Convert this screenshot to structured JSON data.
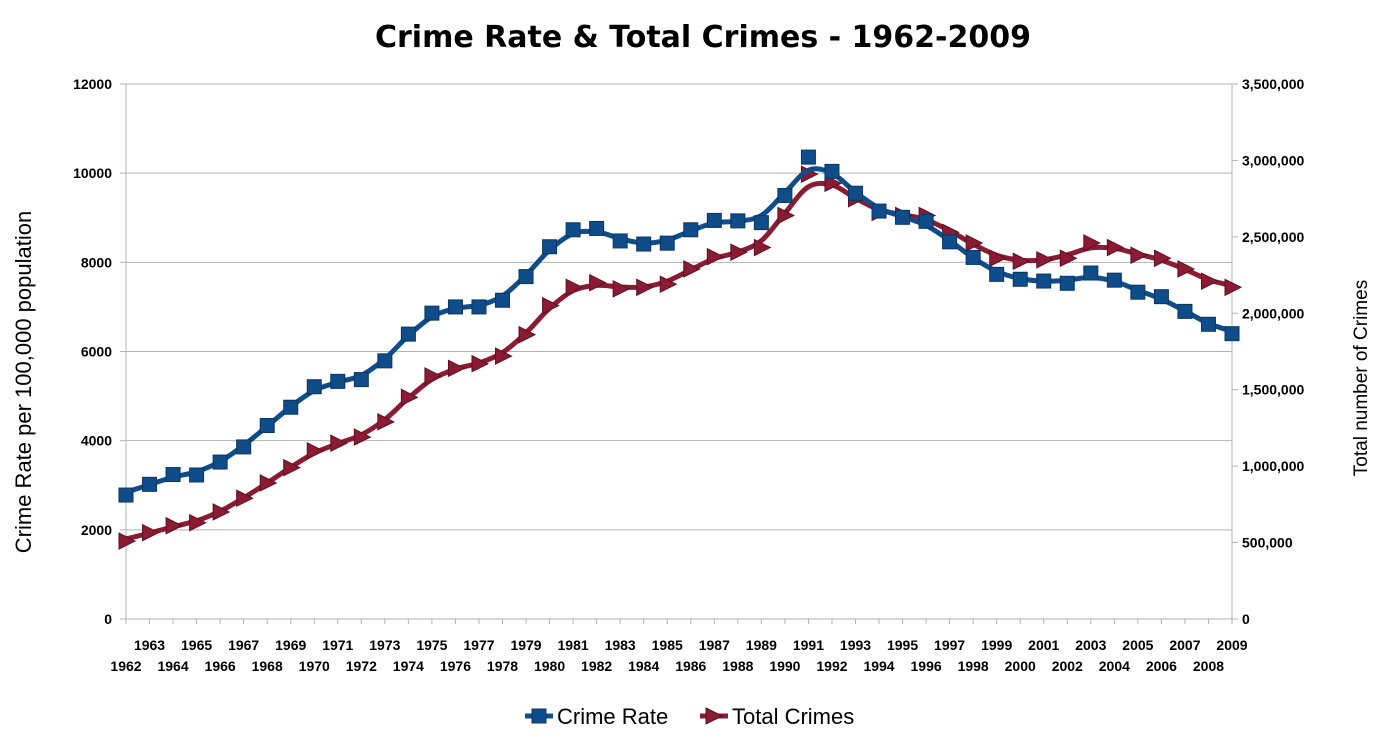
{
  "chart_data": {
    "type": "line",
    "title": "Crime Rate & Total Crimes - 1962-2009",
    "ylabel": "Crime Rate per 100,000 population",
    "ylabel_right": "Total number of Crimes",
    "xlabel": "",
    "ylim": [
      0,
      12000
    ],
    "ylim_right": [
      0,
      3500000
    ],
    "yticks": [
      "0",
      "2000",
      "4000",
      "6000",
      "8000",
      "10000",
      "12000"
    ],
    "yticks_right": [
      "0",
      "500,000",
      "1,000,000",
      "1,500,000",
      "2,000,000",
      "2,500,000",
      "3,000,000",
      "3,500,000"
    ],
    "grid": "horizontal",
    "legend": "bottom",
    "x": [
      "1962",
      "1963",
      "1964",
      "1965",
      "1966",
      "1967",
      "1968",
      "1969",
      "1970",
      "1971",
      "1972",
      "1973",
      "1974",
      "1975",
      "1976",
      "1977",
      "1978",
      "1979",
      "1980",
      "1981",
      "1982",
      "1983",
      "1984",
      "1985",
      "1986",
      "1987",
      "1988",
      "1989",
      "1990",
      "1991",
      "1992",
      "1993",
      "1994",
      "1995",
      "1996",
      "1997",
      "1998",
      "1999",
      "2000",
      "2001",
      "2002",
      "2003",
      "2004",
      "2005",
      "2006",
      "2007",
      "2008",
      "2009"
    ],
    "series": [
      {
        "name": "Crime Rate",
        "axis": "left",
        "color": "#0f4c8a",
        "marker": "square",
        "values": [
          2780,
          3020,
          3240,
          3230,
          3520,
          3860,
          4340,
          4750,
          5210,
          5330,
          5370,
          5790,
          6390,
          6860,
          7000,
          7000,
          7150,
          7680,
          8350,
          8730,
          8760,
          8480,
          8410,
          8430,
          8730,
          8940,
          8930,
          8890,
          9500,
          10360,
          10040,
          9550,
          9150,
          9010,
          8920,
          8460,
          8110,
          7730,
          7620,
          7580,
          7530,
          7760,
          7600,
          7330,
          7230,
          6900,
          6610,
          6400
        ]
      },
      {
        "name": "Total Crimes",
        "axis": "right",
        "color": "#8b1a33",
        "marker": "triangle-right",
        "values": [
          510000,
          565000,
          610000,
          630000,
          700000,
          790000,
          890000,
          990000,
          1100000,
          1150000,
          1190000,
          1290000,
          1450000,
          1590000,
          1640000,
          1670000,
          1720000,
          1860000,
          2050000,
          2170000,
          2200000,
          2160000,
          2170000,
          2190000,
          2290000,
          2370000,
          2400000,
          2430000,
          2640000,
          2910000,
          2850000,
          2750000,
          2660000,
          2640000,
          2640000,
          2530000,
          2460000,
          2360000,
          2340000,
          2350000,
          2360000,
          2460000,
          2430000,
          2380000,
          2360000,
          2290000,
          2210000,
          2170000
        ]
      }
    ]
  }
}
